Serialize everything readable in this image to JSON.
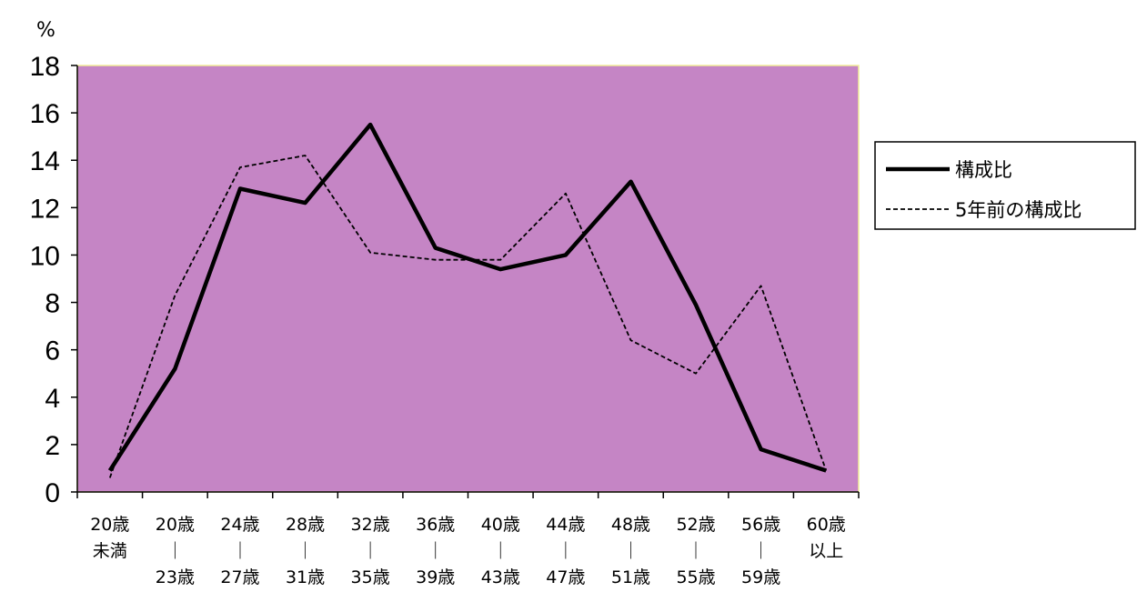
{
  "chart_data": {
    "type": "line",
    "y_unit": "%",
    "categories": [
      [
        "20歳",
        "未満"
      ],
      [
        "20歳",
        "｜",
        "23歳"
      ],
      [
        "24歳",
        "｜",
        "27歳"
      ],
      [
        "28歳",
        "｜",
        "31歳"
      ],
      [
        "32歳",
        "｜",
        "35歳"
      ],
      [
        "36歳",
        "｜",
        "39歳"
      ],
      [
        "40歳",
        "｜",
        "43歳"
      ],
      [
        "44歳",
        "｜",
        "47歳"
      ],
      [
        "48歳",
        "｜",
        "51歳"
      ],
      [
        "52歳",
        "｜",
        "55歳"
      ],
      [
        "56歳",
        "｜",
        "59歳"
      ],
      [
        "60歳",
        "以上"
      ]
    ],
    "ylim": [
      0,
      18
    ],
    "yticks": [
      0,
      2,
      4,
      6,
      8,
      10,
      12,
      14,
      16,
      18
    ],
    "plot_background": "#c585c5",
    "grid": false,
    "legend_position": "right",
    "series": [
      {
        "name": "構成比",
        "style": "solid",
        "values": [
          0.9,
          5.2,
          12.8,
          12.2,
          15.5,
          10.3,
          9.4,
          10.0,
          13.1,
          7.9,
          1.8,
          0.9
        ]
      },
      {
        "name": "5年前の構成比",
        "style": "dashed",
        "values": [
          0.6,
          8.3,
          13.7,
          14.2,
          10.1,
          9.8,
          9.8,
          12.6,
          6.4,
          5.0,
          8.7,
          0.9
        ]
      }
    ]
  }
}
